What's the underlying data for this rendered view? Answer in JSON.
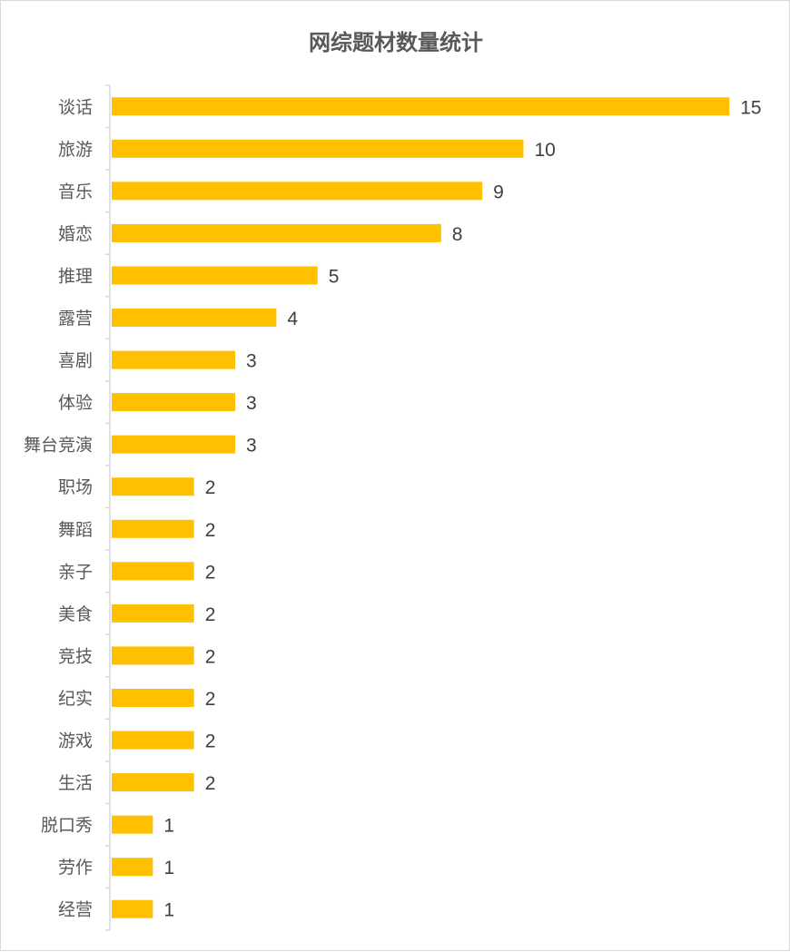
{
  "chart_data": {
    "type": "bar",
    "orientation": "horizontal",
    "title": "网综题材数量统计",
    "categories": [
      "谈话",
      "旅游",
      "音乐",
      "婚恋",
      "推理",
      "露营",
      "喜剧",
      "体验",
      "舞台竞演",
      "职场",
      "舞蹈",
      "亲子",
      "美食",
      "竞技",
      "纪实",
      "游戏",
      "生活",
      "脱口秀",
      "劳作",
      "经营"
    ],
    "values": [
      15,
      10,
      9,
      8,
      5,
      4,
      3,
      3,
      3,
      2,
      2,
      2,
      2,
      2,
      2,
      2,
      2,
      1,
      1,
      1
    ],
    "xlim": [
      0,
      15
    ],
    "grid": false,
    "data_labels": true,
    "legend": "none",
    "bar_color": "#FFC000",
    "axis_color": "#d9d9d9"
  }
}
